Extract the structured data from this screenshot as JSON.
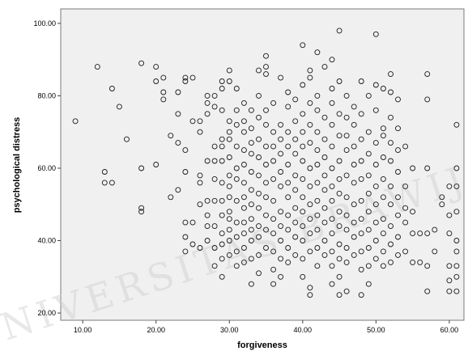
{
  "chart_data": {
    "type": "scatter",
    "xlabel": "forgiveness",
    "ylabel": "psychological distress",
    "xlim": [
      7,
      62
    ],
    "ylim": [
      18,
      104
    ],
    "x_ticks": [
      "10.00",
      "20.00",
      "30.00",
      "40.00",
      "50.00",
      "60.00"
    ],
    "y_ticks": [
      "20.00",
      "40.00",
      "60.00",
      "80.00",
      "100.00"
    ],
    "grid": false,
    "background_color": "#f0f0f0",
    "marker": "hollow-circle",
    "marker_color": "#1a1a1a",
    "points": [
      [
        9,
        73
      ],
      [
        12,
        88
      ],
      [
        13,
        59
      ],
      [
        13,
        56
      ],
      [
        14,
        82
      ],
      [
        14,
        56
      ],
      [
        15,
        77
      ],
      [
        16,
        68
      ],
      [
        18,
        89
      ],
      [
        18,
        60
      ],
      [
        18,
        49
      ],
      [
        18,
        48
      ],
      [
        20,
        88
      ],
      [
        20,
        84
      ],
      [
        20,
        61
      ],
      [
        21,
        85
      ],
      [
        21,
        81
      ],
      [
        21,
        79
      ],
      [
        22,
        69
      ],
      [
        22,
        52
      ],
      [
        23,
        81
      ],
      [
        23,
        75
      ],
      [
        23,
        67
      ],
      [
        23,
        54
      ],
      [
        24,
        85
      ],
      [
        24,
        84
      ],
      [
        24,
        65
      ],
      [
        24,
        59
      ],
      [
        24,
        45
      ],
      [
        24,
        41
      ],
      [
        24,
        37
      ],
      [
        25,
        85
      ],
      [
        25,
        73
      ],
      [
        25,
        45
      ],
      [
        25,
        39
      ],
      [
        26,
        73
      ],
      [
        26,
        70
      ],
      [
        26,
        58
      ],
      [
        26,
        56
      ],
      [
        26,
        50
      ],
      [
        26,
        38
      ],
      [
        27,
        80
      ],
      [
        27,
        78
      ],
      [
        27,
        75
      ],
      [
        27,
        62
      ],
      [
        27,
        51
      ],
      [
        27,
        47
      ],
      [
        27,
        44
      ],
      [
        27,
        40
      ],
      [
        28,
        80
      ],
      [
        28,
        77
      ],
      [
        28,
        66
      ],
      [
        28,
        62
      ],
      [
        28,
        57
      ],
      [
        28,
        51
      ],
      [
        28,
        44
      ],
      [
        28,
        38
      ],
      [
        28,
        33
      ],
      [
        29,
        84
      ],
      [
        29,
        82
      ],
      [
        29,
        76
      ],
      [
        29,
        68
      ],
      [
        29,
        66
      ],
      [
        29,
        62
      ],
      [
        29,
        56
      ],
      [
        29,
        51
      ],
      [
        29,
        47
      ],
      [
        29,
        42
      ],
      [
        29,
        39
      ],
      [
        29,
        35
      ],
      [
        29,
        30
      ],
      [
        30,
        87
      ],
      [
        30,
        84
      ],
      [
        30,
        73
      ],
      [
        30,
        70
      ],
      [
        30,
        68
      ],
      [
        30,
        63
      ],
      [
        30,
        58
      ],
      [
        30,
        55
      ],
      [
        30,
        52
      ],
      [
        30,
        48
      ],
      [
        30,
        46
      ],
      [
        30,
        43
      ],
      [
        30,
        40
      ],
      [
        30,
        36
      ],
      [
        31,
        82
      ],
      [
        31,
        76
      ],
      [
        31,
        72
      ],
      [
        31,
        66
      ],
      [
        31,
        60
      ],
      [
        31,
        57
      ],
      [
        31,
        51
      ],
      [
        31,
        45
      ],
      [
        31,
        41
      ],
      [
        31,
        37
      ],
      [
        31,
        33
      ],
      [
        32,
        78
      ],
      [
        32,
        73
      ],
      [
        32,
        70
      ],
      [
        32,
        65
      ],
      [
        32,
        61
      ],
      [
        32,
        56
      ],
      [
        32,
        52
      ],
      [
        32,
        49
      ],
      [
        32,
        45
      ],
      [
        32,
        42
      ],
      [
        32,
        38
      ],
      [
        32,
        34
      ],
      [
        33,
        76
      ],
      [
        33,
        71
      ],
      [
        33,
        67
      ],
      [
        33,
        64
      ],
      [
        33,
        59
      ],
      [
        33,
        54
      ],
      [
        33,
        50
      ],
      [
        33,
        46
      ],
      [
        33,
        43
      ],
      [
        33,
        40
      ],
      [
        33,
        35
      ],
      [
        33,
        28
      ],
      [
        34,
        87
      ],
      [
        34,
        80
      ],
      [
        34,
        74
      ],
      [
        34,
        68
      ],
      [
        34,
        63
      ],
      [
        34,
        58
      ],
      [
        34,
        53
      ],
      [
        34,
        49
      ],
      [
        34,
        44
      ],
      [
        34,
        41
      ],
      [
        34,
        36
      ],
      [
        34,
        31
      ],
      [
        35,
        91
      ],
      [
        35,
        88
      ],
      [
        35,
        86
      ],
      [
        35,
        76
      ],
      [
        35,
        72
      ],
      [
        35,
        66
      ],
      [
        35,
        61
      ],
      [
        35,
        56
      ],
      [
        35,
        52
      ],
      [
        35,
        47
      ],
      [
        35,
        43
      ],
      [
        35,
        38
      ],
      [
        36,
        78
      ],
      [
        36,
        70
      ],
      [
        36,
        66
      ],
      [
        36,
        62
      ],
      [
        36,
        57
      ],
      [
        36,
        51
      ],
      [
        36,
        46
      ],
      [
        36,
        42
      ],
      [
        36,
        37
      ],
      [
        36,
        32
      ],
      [
        36,
        28
      ],
      [
        37,
        85
      ],
      [
        37,
        72
      ],
      [
        37,
        68
      ],
      [
        37,
        64
      ],
      [
        37,
        59
      ],
      [
        37,
        55
      ],
      [
        37,
        48
      ],
      [
        37,
        44
      ],
      [
        37,
        40
      ],
      [
        37,
        35
      ],
      [
        37,
        30
      ],
      [
        38,
        81
      ],
      [
        38,
        77
      ],
      [
        38,
        70
      ],
      [
        38,
        66
      ],
      [
        38,
        61
      ],
      [
        38,
        56
      ],
      [
        38,
        52
      ],
      [
        38,
        47
      ],
      [
        38,
        43
      ],
      [
        38,
        38
      ],
      [
        38,
        34
      ],
      [
        39,
        79
      ],
      [
        39,
        73
      ],
      [
        39,
        68
      ],
      [
        39,
        64
      ],
      [
        39,
        58
      ],
      [
        39,
        54
      ],
      [
        39,
        49
      ],
      [
        39,
        45
      ],
      [
        39,
        41
      ],
      [
        39,
        36
      ],
      [
        40,
        94
      ],
      [
        40,
        83
      ],
      [
        40,
        75
      ],
      [
        40,
        70
      ],
      [
        40,
        66
      ],
      [
        40,
        62
      ],
      [
        40,
        57
      ],
      [
        40,
        52
      ],
      [
        40,
        48
      ],
      [
        40,
        44
      ],
      [
        40,
        40
      ],
      [
        40,
        35
      ],
      [
        40,
        30
      ],
      [
        41,
        87
      ],
      [
        41,
        85
      ],
      [
        41,
        78
      ],
      [
        41,
        72
      ],
      [
        41,
        67
      ],
      [
        41,
        60
      ],
      [
        41,
        55
      ],
      [
        41,
        50
      ],
      [
        41,
        46
      ],
      [
        41,
        42
      ],
      [
        41,
        37
      ],
      [
        41,
        27
      ],
      [
        41,
        25
      ],
      [
        42,
        92
      ],
      [
        42,
        80
      ],
      [
        42,
        76
      ],
      [
        42,
        70
      ],
      [
        42,
        65
      ],
      [
        42,
        61
      ],
      [
        42,
        56
      ],
      [
        42,
        51
      ],
      [
        42,
        47
      ],
      [
        42,
        43
      ],
      [
        42,
        38
      ],
      [
        42,
        33
      ],
      [
        43,
        88
      ],
      [
        43,
        74
      ],
      [
        43,
        68
      ],
      [
        43,
        63
      ],
      [
        43,
        58
      ],
      [
        43,
        54
      ],
      [
        43,
        49
      ],
      [
        43,
        45
      ],
      [
        43,
        40
      ],
      [
        43,
        36
      ],
      [
        44,
        90
      ],
      [
        44,
        82
      ],
      [
        44,
        78
      ],
      [
        44,
        72
      ],
      [
        44,
        66
      ],
      [
        44,
        60
      ],
      [
        44,
        55
      ],
      [
        44,
        51
      ],
      [
        44,
        46
      ],
      [
        44,
        42
      ],
      [
        44,
        37
      ],
      [
        44,
        33
      ],
      [
        44,
        28
      ],
      [
        45,
        98
      ],
      [
        45,
        84
      ],
      [
        45,
        75
      ],
      [
        45,
        69
      ],
      [
        45,
        62
      ],
      [
        45,
        57
      ],
      [
        45,
        53
      ],
      [
        45,
        48
      ],
      [
        45,
        44
      ],
      [
        45,
        39
      ],
      [
        45,
        35
      ],
      [
        45,
        30
      ],
      [
        45,
        25
      ],
      [
        46,
        80
      ],
      [
        46,
        74
      ],
      [
        46,
        69
      ],
      [
        46,
        65
      ],
      [
        46,
        58
      ],
      [
        46,
        52
      ],
      [
        46,
        47
      ],
      [
        46,
        43
      ],
      [
        46,
        38
      ],
      [
        46,
        34
      ],
      [
        46,
        26
      ],
      [
        47,
        77
      ],
      [
        47,
        72
      ],
      [
        47,
        66
      ],
      [
        47,
        61
      ],
      [
        47,
        56
      ],
      [
        47,
        50
      ],
      [
        47,
        45
      ],
      [
        47,
        41
      ],
      [
        47,
        36
      ],
      [
        48,
        84
      ],
      [
        48,
        75
      ],
      [
        48,
        68
      ],
      [
        48,
        62
      ],
      [
        48,
        57
      ],
      [
        48,
        51
      ],
      [
        48,
        46
      ],
      [
        48,
        42
      ],
      [
        48,
        37
      ],
      [
        48,
        32
      ],
      [
        48,
        25
      ],
      [
        49,
        80
      ],
      [
        49,
        70
      ],
      [
        49,
        64
      ],
      [
        49,
        58
      ],
      [
        49,
        53
      ],
      [
        49,
        48
      ],
      [
        49,
        43
      ],
      [
        49,
        38
      ],
      [
        49,
        33
      ],
      [
        49,
        28
      ],
      [
        50,
        97
      ],
      [
        50,
        83
      ],
      [
        50,
        76
      ],
      [
        50,
        67
      ],
      [
        50,
        61
      ],
      [
        50,
        55
      ],
      [
        50,
        50
      ],
      [
        50,
        45
      ],
      [
        50,
        40
      ],
      [
        50,
        35
      ],
      [
        51,
        82
      ],
      [
        51,
        71
      ],
      [
        51,
        69
      ],
      [
        51,
        63
      ],
      [
        51,
        57
      ],
      [
        51,
        52
      ],
      [
        51,
        46
      ],
      [
        51,
        42
      ],
      [
        51,
        37
      ],
      [
        51,
        33
      ],
      [
        52,
        86
      ],
      [
        52,
        81
      ],
      [
        52,
        74
      ],
      [
        52,
        67
      ],
      [
        52,
        62
      ],
      [
        52,
        55
      ],
      [
        52,
        50
      ],
      [
        52,
        44
      ],
      [
        52,
        39
      ],
      [
        52,
        34
      ],
      [
        53,
        79
      ],
      [
        53,
        71
      ],
      [
        53,
        65
      ],
      [
        53,
        59
      ],
      [
        53,
        52
      ],
      [
        53,
        47
      ],
      [
        53,
        41
      ],
      [
        53,
        36
      ],
      [
        54,
        66
      ],
      [
        54,
        55
      ],
      [
        54,
        49
      ],
      [
        54,
        45
      ],
      [
        54,
        37
      ],
      [
        55,
        60
      ],
      [
        55,
        48
      ],
      [
        55,
        42
      ],
      [
        55,
        34
      ],
      [
        56,
        42
      ],
      [
        56,
        34
      ],
      [
        57,
        86
      ],
      [
        57,
        79
      ],
      [
        57,
        60
      ],
      [
        57,
        42
      ],
      [
        57,
        33
      ],
      [
        57,
        26
      ],
      [
        58,
        43
      ],
      [
        58,
        37
      ],
      [
        59,
        52
      ],
      [
        59,
        50
      ],
      [
        60,
        55
      ],
      [
        60,
        47
      ],
      [
        60,
        42
      ],
      [
        60,
        33
      ],
      [
        60,
        29
      ],
      [
        60,
        26
      ],
      [
        61,
        72
      ],
      [
        61,
        60
      ],
      [
        61,
        55
      ],
      [
        61,
        48
      ],
      [
        61,
        40
      ],
      [
        61,
        37
      ],
      [
        61,
        33
      ],
      [
        61,
        30
      ],
      [
        61,
        26
      ]
    ]
  },
  "watermark": "UNIVERSITAS BRAWIJAYA"
}
